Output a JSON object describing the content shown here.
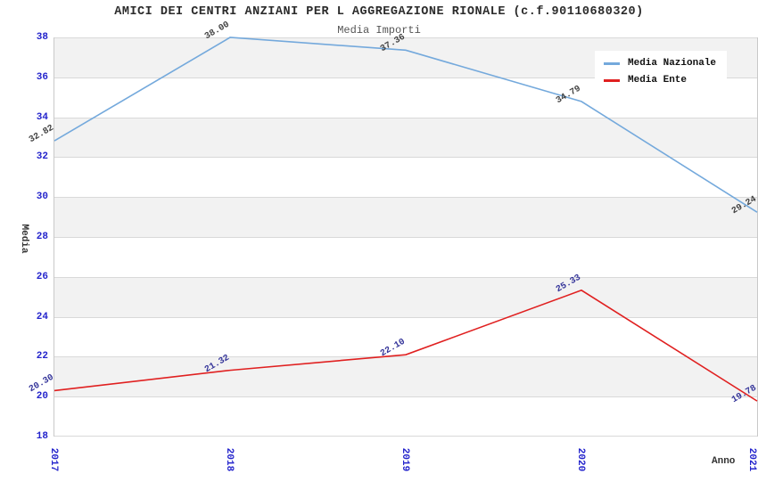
{
  "title": "AMICI DEI CENTRI ANZIANI PER L AGGREGAZIONE RIONALE (c.f.90110680320)",
  "subtitle": "Media Importi",
  "chart_data": {
    "type": "line",
    "x": [
      "2017",
      "2018",
      "2019",
      "2020",
      "2021"
    ],
    "series": [
      {
        "name": "Media Nazionale",
        "values": [
          32.82,
          38.0,
          37.36,
          34.79,
          29.24
        ],
        "point_labels": [
          "32.82",
          "38.00",
          "37.36",
          "34.79",
          "29.24"
        ],
        "color": "#74A9DC",
        "label_color": "#404040"
      },
      {
        "name": "Media Ente",
        "values": [
          20.3,
          21.32,
          22.1,
          25.33,
          19.78
        ],
        "point_labels": [
          "20.30",
          "21.32",
          "22.10",
          "25.33",
          "19.78"
        ],
        "color": "#E02020",
        "label_color": "#333399"
      }
    ],
    "xlabel": "Anno",
    "ylabel": "Media",
    "ylim": [
      18,
      38
    ],
    "ytick_step": 2,
    "grid": "horizontal",
    "legend_position": "top-right",
    "band_colors": [
      "#f2f2f2",
      "#ffffff"
    ],
    "gridline_color": "#d9d9d9",
    "tick_color": "#2424CC"
  }
}
